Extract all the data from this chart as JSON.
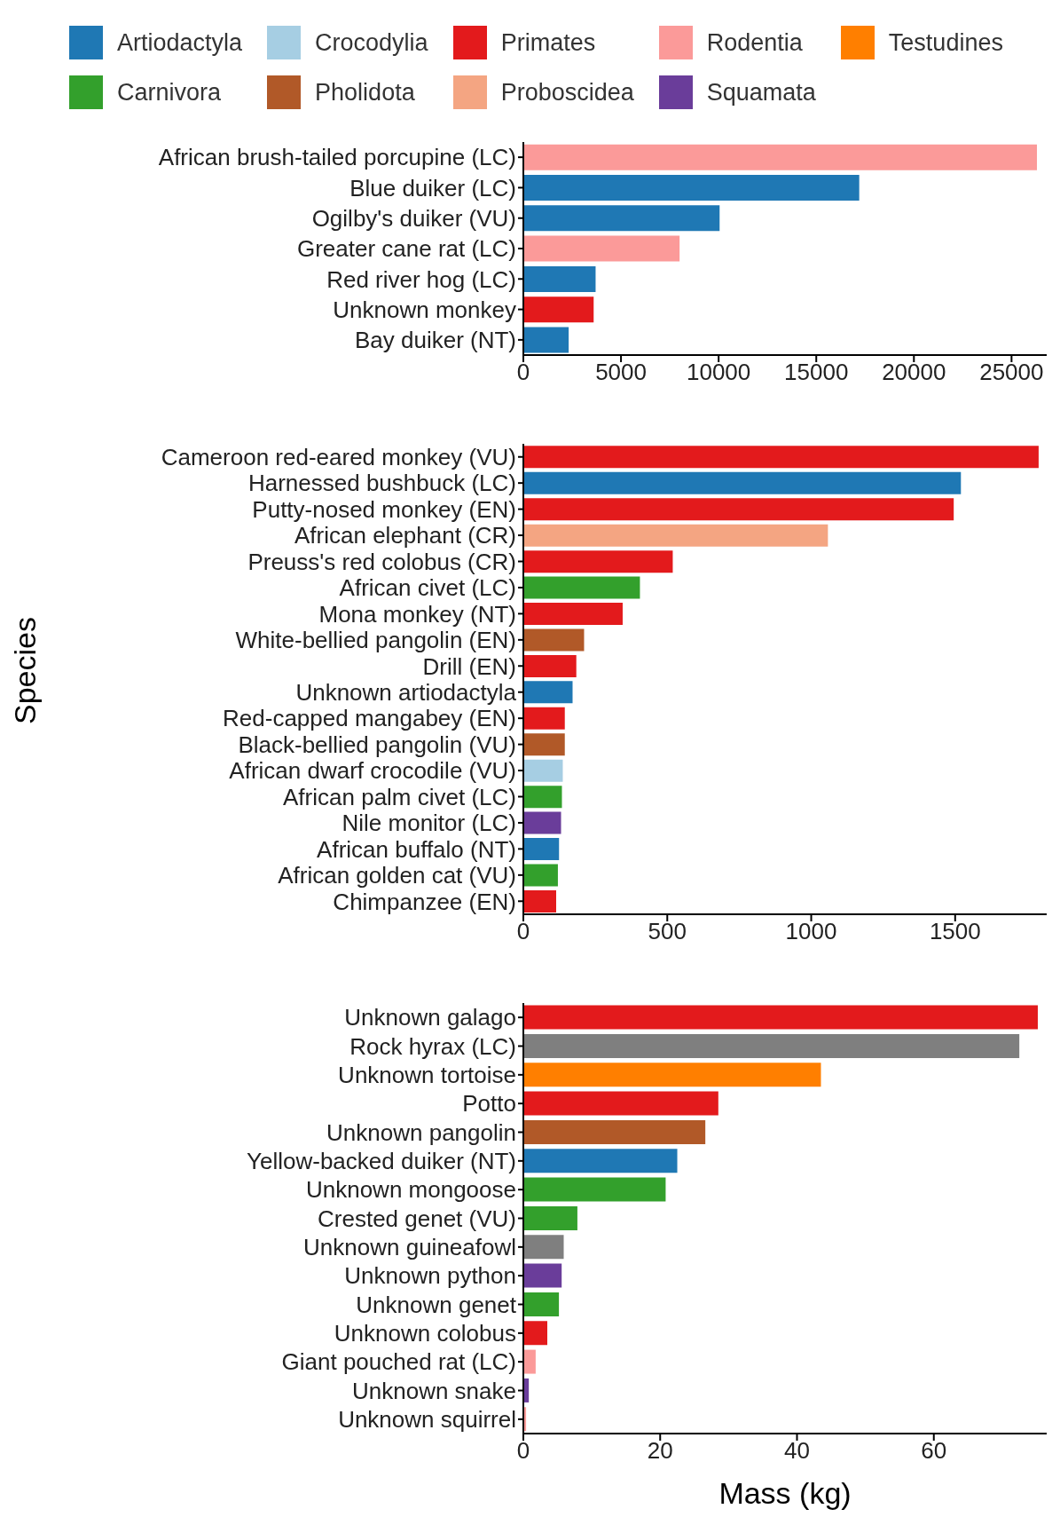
{
  "chart_data": [
    {
      "type": "bar",
      "orientation": "horizontal",
      "stacked": true,
      "legend": "top",
      "categories": [
        "African brush-tailed porcupine (LC)",
        "Blue duiker (LC)",
        "Ogilby's duiker (VU)",
        "Greater cane rat (LC)",
        "Red river hog (LC)",
        "Unknown monkey",
        "Bay duiker (NT)"
      ],
      "series": [
        {
          "name": "Artiodactyla",
          "color": "#1f78b4",
          "values": [
            null,
            17200,
            10050,
            null,
            3700,
            null,
            2320
          ]
        },
        {
          "name": "Carnivora",
          "color": "#33a02c",
          "values": [
            null,
            null,
            null,
            null,
            null,
            null,
            null
          ]
        },
        {
          "name": "Crocodylia",
          "color": "#a6cee3",
          "values": [
            null,
            null,
            null,
            null,
            null,
            null,
            null
          ]
        },
        {
          "name": "Pholidota",
          "color": "#b15928",
          "values": [
            null,
            null,
            null,
            null,
            null,
            null,
            null
          ]
        },
        {
          "name": "Primates",
          "color": "#e31a1c",
          "values": [
            null,
            null,
            null,
            null,
            null,
            3600,
            null
          ]
        },
        {
          "name": "Proboscidea",
          "color": "#f4a582",
          "values": [
            null,
            null,
            null,
            null,
            null,
            null,
            null
          ]
        },
        {
          "name": "Rodentia",
          "color": "#fb9a99",
          "values": [
            26300,
            null,
            null,
            8000,
            null,
            null,
            null
          ]
        },
        {
          "name": "Squamata",
          "color": "#6a3d9a",
          "values": [
            null,
            null,
            null,
            null,
            null,
            null,
            null
          ]
        },
        {
          "name": "Testudines",
          "color": "#ff7f00",
          "values": [
            null,
            null,
            null,
            null,
            null,
            null,
            null
          ]
        }
      ],
      "xlim": [
        0,
        26800
      ],
      "xticks": [
        0,
        5000,
        10000,
        15000,
        20000,
        25000
      ]
    },
    {
      "type": "bar",
      "orientation": "horizontal",
      "stacked": true,
      "ylabel": "Species",
      "categories": [
        "Cameroon red-eared monkey (VU)",
        "Harnessed bushbuck (LC)",
        "Putty-nosed monkey (EN)",
        "African elephant (CR)",
        "Preuss's red colobus (CR)",
        "African civet (LC)",
        "Mona monkey (NT)",
        "White-bellied pangolin (EN)",
        "Drill (EN)",
        "Unknown artiodactyla",
        "Red-capped mangabey (EN)",
        "Black-bellied pangolin (VU)",
        "African dwarf crocodile (VU)",
        "African palm civet (LC)",
        "Nile monitor (LC)",
        "African buffalo (NT)",
        "African golden cat (VU)",
        "Chimpanzee (EN)"
      ],
      "series": [
        {
          "color": "#1f78b4",
          "values": [
            null,
            1520,
            null,
            null,
            null,
            null,
            null,
            null,
            null,
            171,
            null,
            null,
            null,
            null,
            null,
            124,
            null,
            null
          ]
        },
        {
          "color": "#33a02c",
          "values": [
            null,
            null,
            null,
            null,
            null,
            405,
            null,
            null,
            null,
            null,
            null,
            null,
            null,
            134,
            null,
            null,
            120,
            null
          ]
        },
        {
          "color": "#a6cee3",
          "values": [
            null,
            null,
            null,
            null,
            null,
            null,
            null,
            null,
            null,
            null,
            null,
            null,
            137,
            null,
            null,
            null,
            null,
            null
          ]
        },
        {
          "color": "#b15928",
          "values": [
            null,
            null,
            null,
            null,
            null,
            null,
            null,
            211,
            null,
            null,
            null,
            144,
            null,
            null,
            null,
            null,
            null,
            null
          ]
        },
        {
          "color": "#e31a1c",
          "values": [
            1790,
            null,
            1495,
            null,
            519,
            null,
            345,
            null,
            184,
            null,
            144,
            null,
            null,
            null,
            null,
            null,
            null,
            114
          ]
        },
        {
          "color": "#f4a582",
          "values": [
            null,
            null,
            null,
            1058,
            null,
            null,
            null,
            null,
            null,
            null,
            null,
            null,
            null,
            null,
            null,
            null,
            null,
            null
          ]
        },
        {
          "color": "#6a3d9a",
          "values": [
            null,
            null,
            null,
            null,
            null,
            null,
            null,
            null,
            null,
            null,
            null,
            null,
            null,
            null,
            131,
            null,
            null,
            null
          ]
        }
      ],
      "xlim": [
        0,
        1818
      ],
      "xticks": [
        0,
        500,
        1000,
        1500
      ]
    },
    {
      "type": "bar",
      "orientation": "horizontal",
      "stacked": true,
      "xlabel": "Mass (kg)",
      "categories": [
        "Unknown galago",
        "Rock hyrax (LC)",
        "Unknown tortoise",
        "Potto",
        "Unknown pangolin",
        "Yellow-backed duiker (NT)",
        "Unknown mongoose",
        "Crested genet (VU)",
        "Unknown guineafowl",
        "Unknown python",
        "Unknown genet",
        "Unknown colobus",
        "Giant pouched rat (LC)",
        "Unknown snake",
        "Unknown squirrel"
      ],
      "series": [
        {
          "color": "#1f78b4",
          "values": [
            null,
            null,
            null,
            null,
            null,
            22.5,
            null,
            null,
            null,
            null,
            null,
            null,
            null,
            null,
            null
          ]
        },
        {
          "color": "#33a02c",
          "values": [
            null,
            null,
            null,
            null,
            null,
            null,
            20.8,
            7.9,
            null,
            null,
            5.2,
            null,
            null,
            null,
            null
          ]
        },
        {
          "color": "#b15928",
          "values": [
            null,
            null,
            null,
            null,
            26.6,
            null,
            null,
            null,
            null,
            null,
            null,
            null,
            null,
            null,
            null
          ]
        },
        {
          "color": "#e31a1c",
          "values": [
            75.2,
            null,
            null,
            28.5,
            null,
            null,
            null,
            null,
            null,
            null,
            null,
            3.5,
            null,
            null,
            null
          ]
        },
        {
          "color": "#fb9a99",
          "values": [
            null,
            null,
            null,
            null,
            null,
            null,
            null,
            null,
            null,
            null,
            null,
            null,
            1.8,
            null,
            0.4
          ]
        },
        {
          "color": "#6a3d9a",
          "values": [
            null,
            null,
            null,
            null,
            null,
            null,
            null,
            null,
            null,
            5.6,
            null,
            null,
            null,
            0.8,
            null
          ]
        },
        {
          "color": "#ff7f00",
          "values": [
            null,
            null,
            43.5,
            null,
            null,
            null,
            null,
            null,
            null,
            null,
            null,
            null,
            null,
            null,
            null
          ]
        },
        {
          "color": "#7f7f7f",
          "values": [
            null,
            72.5,
            null,
            null,
            null,
            null,
            null,
            null,
            5.9,
            null,
            null,
            null,
            null,
            null,
            null
          ]
        }
      ],
      "xlim": [
        0,
        76.5
      ],
      "xticks": [
        0,
        20,
        40,
        60
      ]
    }
  ]
}
